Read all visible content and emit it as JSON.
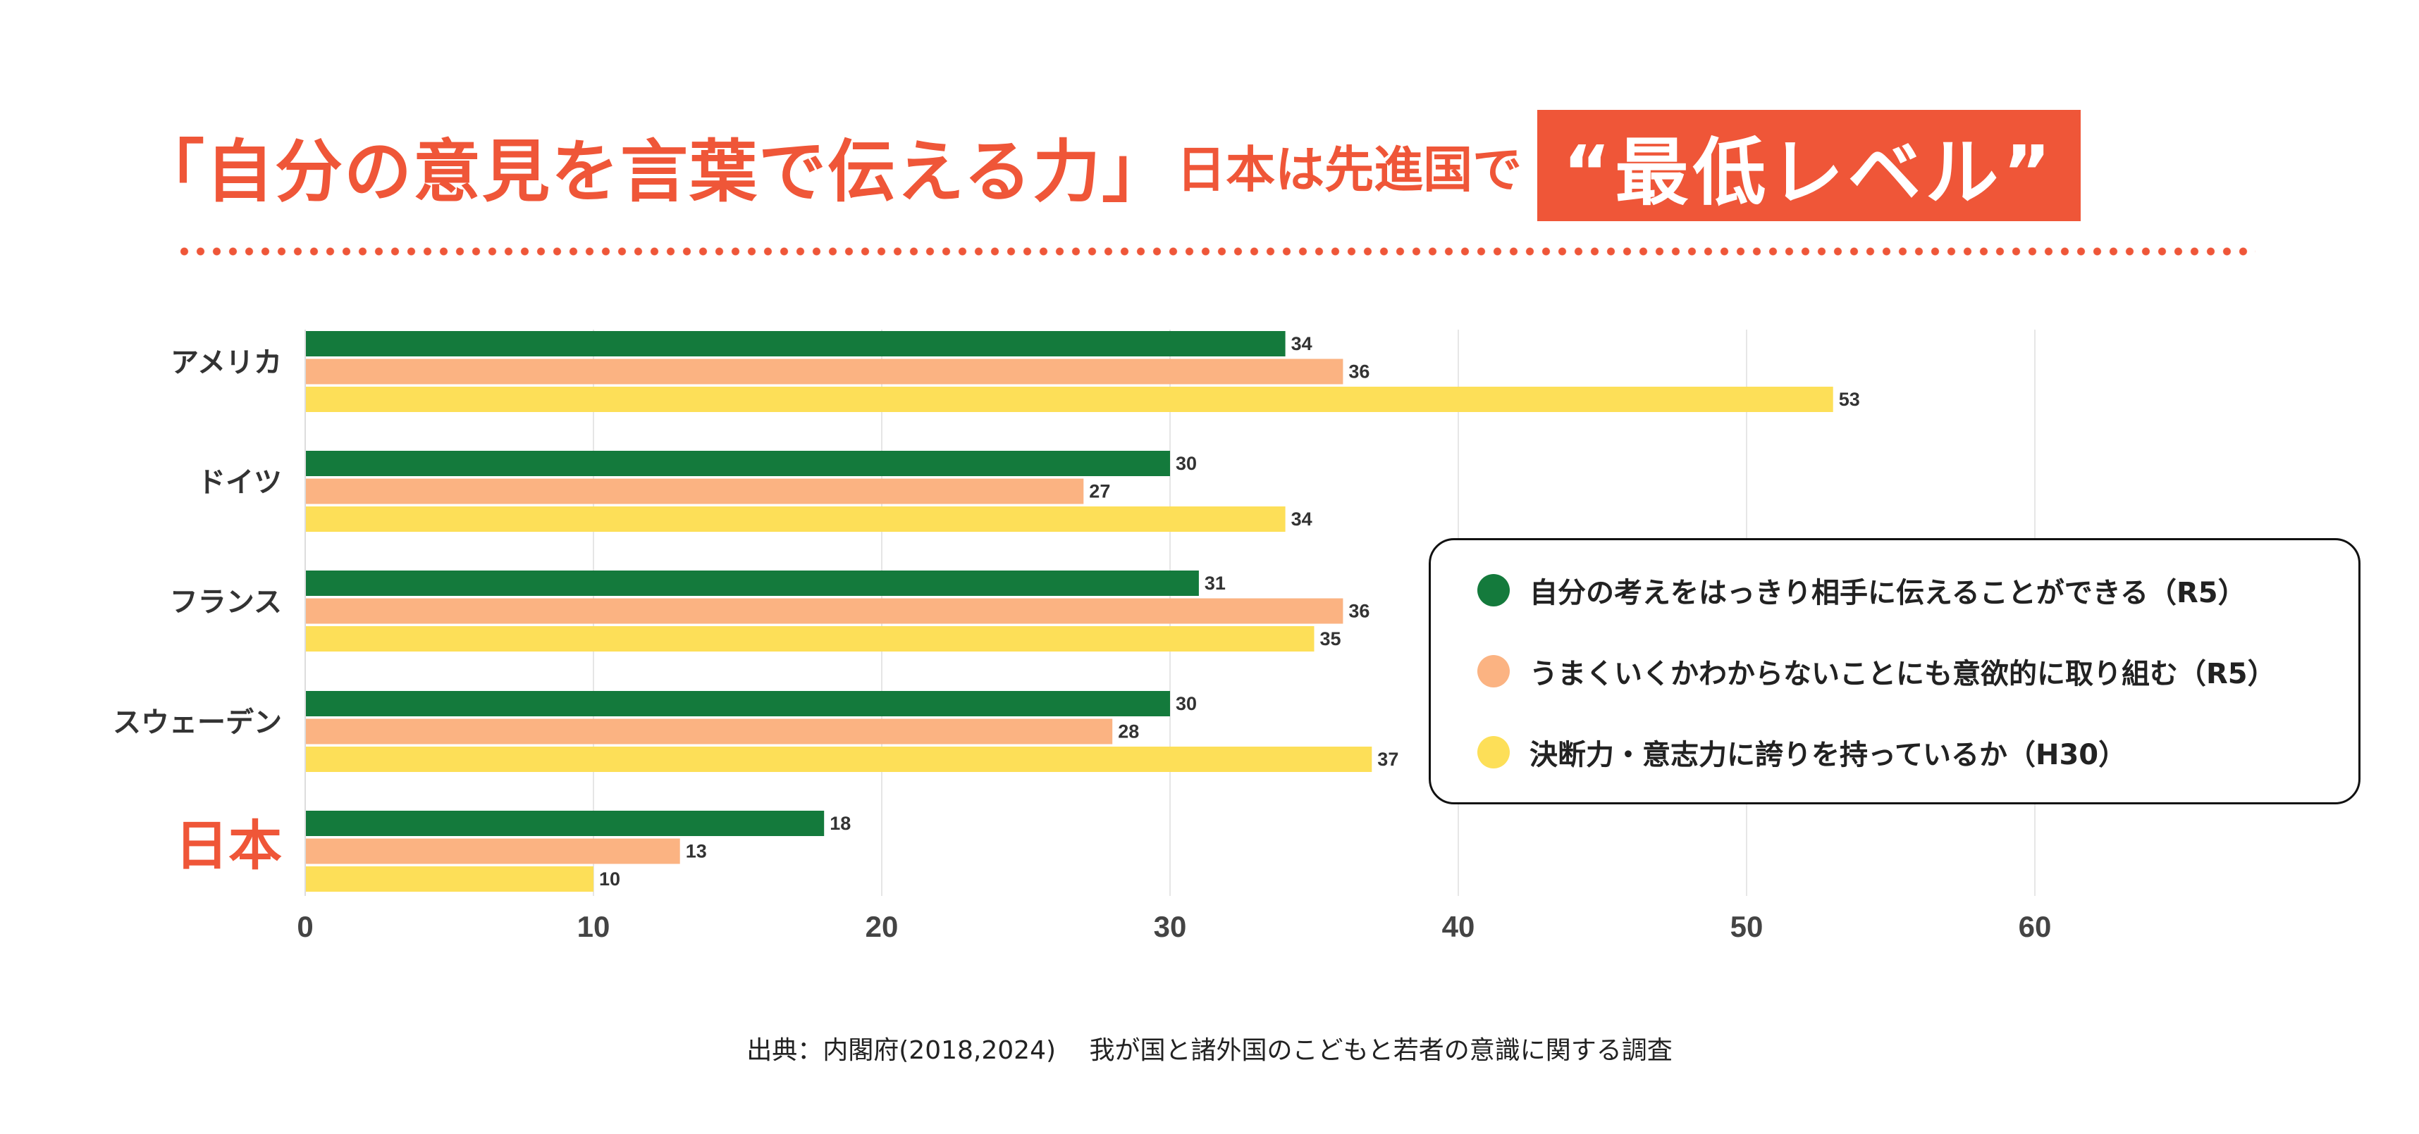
{
  "headline": {
    "main": "「自分の意見を言葉で伝える力」",
    "sub": "日本は先進国で",
    "emphasis": "“最低レベル”"
  },
  "colors": {
    "accent": "#ef5638",
    "series": [
      "#147a3c",
      "#fbb382",
      "#fddf58"
    ]
  },
  "chart_data": {
    "type": "bar",
    "orientation": "horizontal",
    "categories": [
      "アメリカ",
      "ドイツ",
      "フランス",
      "スウェーデン",
      "日本"
    ],
    "highlight_category": "日本",
    "series": [
      {
        "name": "自分の考えをはっきり相手に伝えることができる（R5）",
        "values": [
          34,
          30,
          31,
          30,
          18
        ]
      },
      {
        "name": "うまくいくかわからないことにも意欲的に取り組む（R5）",
        "values": [
          36,
          27,
          36,
          28,
          13
        ]
      },
      {
        "name": "決断力・意志力に誇りを持っているか（H30）",
        "values": [
          53,
          34,
          35,
          37,
          10
        ]
      }
    ],
    "xlim": [
      0,
      60
    ],
    "xticks": [
      0,
      10,
      20,
      30,
      40,
      50,
      60
    ],
    "data_labels": true,
    "grid": "vertical",
    "legend_position": "right"
  },
  "source": "出典：内閣府(2018,2024)　 我が国と諸外国のこどもと若者の意識に関する調査"
}
